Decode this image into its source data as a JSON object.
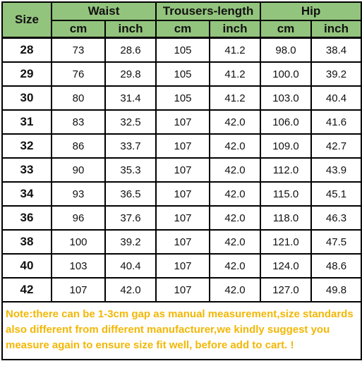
{
  "header": {
    "size_label": "Size",
    "groups": [
      "Waist",
      "Trousers-length",
      "Hip"
    ],
    "units": [
      "cm",
      "inch",
      "cm",
      "inch",
      "cm",
      "inch"
    ]
  },
  "rows": [
    [
      "28",
      "73",
      "28.6",
      "105",
      "41.2",
      "98.0",
      "38.4"
    ],
    [
      "29",
      "76",
      "29.8",
      "105",
      "41.2",
      "100.0",
      "39.2"
    ],
    [
      "30",
      "80",
      "31.4",
      "105",
      "41.2",
      "103.0",
      "40.4"
    ],
    [
      "31",
      "83",
      "32.5",
      "107",
      "42.0",
      "106.0",
      "41.6"
    ],
    [
      "32",
      "86",
      "33.7",
      "107",
      "42.0",
      "109.0",
      "42.7"
    ],
    [
      "33",
      "90",
      "35.3",
      "107",
      "42.0",
      "112.0",
      "43.9"
    ],
    [
      "34",
      "93",
      "36.5",
      "107",
      "42.0",
      "115.0",
      "45.1"
    ],
    [
      "36",
      "96",
      "37.6",
      "107",
      "42.0",
      "118.0",
      "46.3"
    ],
    [
      "38",
      "100",
      "39.2",
      "107",
      "42.0",
      "121.0",
      "47.5"
    ],
    [
      "40",
      "103",
      "40.4",
      "107",
      "42.0",
      "124.0",
      "48.6"
    ],
    [
      "42",
      "107",
      "42.0",
      "107",
      "42.0",
      "127.0",
      "49.8"
    ]
  ],
  "note": "Note:there can be 1-3cm gap as manual measurement,size standards also different from different manufacturer,we kindly suggest you measure again to ensure size fit well, before add to cart. !",
  "colors": {
    "header_bg": "#93c47d",
    "note_text": "#f2b705",
    "border": "#000000"
  }
}
